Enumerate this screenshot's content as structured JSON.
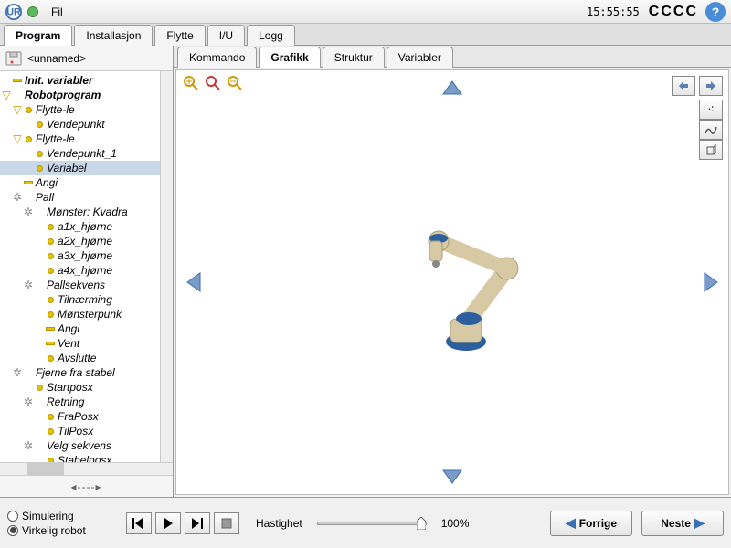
{
  "topbar": {
    "menu_fil": "Fil",
    "clock": "15:55:55",
    "cccc": "CCCC"
  },
  "main_tabs": [
    {
      "label": "Program",
      "active": true
    },
    {
      "label": "Installasjon",
      "active": false
    },
    {
      "label": "Flytte",
      "active": false
    },
    {
      "label": "I/U",
      "active": false
    },
    {
      "label": "Logg",
      "active": false
    }
  ],
  "file_name": "<unnamed>",
  "sub_tabs": [
    {
      "label": "Kommando",
      "active": false
    },
    {
      "label": "Grafikk",
      "active": true
    },
    {
      "label": "Struktur",
      "active": false
    },
    {
      "label": "Variabler",
      "active": false
    }
  ],
  "tree": [
    {
      "indent": 0,
      "twist": "",
      "icon": "bar",
      "label": "Init. variabler",
      "cls": "bold-italic"
    },
    {
      "indent": 0,
      "twist": "▽",
      "icon": "",
      "label": "Robotprogram",
      "cls": "bold-italic"
    },
    {
      "indent": 1,
      "twist": "▽",
      "icon": "dot",
      "label": "Flytte-le",
      "cls": "italic"
    },
    {
      "indent": 2,
      "twist": "",
      "icon": "dot",
      "label": "Vendepunkt",
      "cls": "italic"
    },
    {
      "indent": 1,
      "twist": "▽",
      "icon": "dot",
      "label": "Flytte-le",
      "cls": "italic"
    },
    {
      "indent": 2,
      "twist": "",
      "icon": "dot",
      "label": "Vendepunkt_1",
      "cls": "italic"
    },
    {
      "indent": 2,
      "twist": "",
      "icon": "dot",
      "label": "Variabel",
      "cls": "italic",
      "selected": true
    },
    {
      "indent": 1,
      "twist": "",
      "icon": "bar",
      "label": "Angi",
      "cls": "italic"
    },
    {
      "indent": 1,
      "twist": "⚙",
      "icon": "gear",
      "label": "Pall",
      "cls": "italic"
    },
    {
      "indent": 2,
      "twist": "⚙",
      "icon": "gear",
      "label": "Mønster: Kvadra",
      "cls": "italic"
    },
    {
      "indent": 3,
      "twist": "",
      "icon": "dot",
      "label": "a1x_hjørne",
      "cls": "italic"
    },
    {
      "indent": 3,
      "twist": "",
      "icon": "dot",
      "label": "a2x_hjørne",
      "cls": "italic"
    },
    {
      "indent": 3,
      "twist": "",
      "icon": "dot",
      "label": "a3x_hjørne",
      "cls": "italic"
    },
    {
      "indent": 3,
      "twist": "",
      "icon": "dot",
      "label": "a4x_hjørne",
      "cls": "italic"
    },
    {
      "indent": 2,
      "twist": "⚙",
      "icon": "gear",
      "label": "Pallsekvens",
      "cls": "italic"
    },
    {
      "indent": 3,
      "twist": "",
      "icon": "dot",
      "label": "Tilnærming",
      "cls": "italic"
    },
    {
      "indent": 3,
      "twist": "",
      "icon": "dot",
      "label": "Mønsterpunk",
      "cls": "italic"
    },
    {
      "indent": 3,
      "twist": "",
      "icon": "bar",
      "label": "Angi",
      "cls": "italic"
    },
    {
      "indent": 3,
      "twist": "",
      "icon": "bar",
      "label": "Vent",
      "cls": "italic"
    },
    {
      "indent": 3,
      "twist": "",
      "icon": "dot",
      "label": "Avslutte",
      "cls": "italic"
    },
    {
      "indent": 1,
      "twist": "⚙",
      "icon": "gear",
      "label": "Fjerne fra stabel",
      "cls": "italic"
    },
    {
      "indent": 2,
      "twist": "",
      "icon": "dot",
      "label": "Startposx",
      "cls": "italic"
    },
    {
      "indent": 2,
      "twist": "⚙",
      "icon": "gear",
      "label": "Retning",
      "cls": "italic"
    },
    {
      "indent": 3,
      "twist": "",
      "icon": "dot",
      "label": "FraPosx",
      "cls": "italic"
    },
    {
      "indent": 3,
      "twist": "",
      "icon": "dot",
      "label": "TilPosx",
      "cls": "italic"
    },
    {
      "indent": 2,
      "twist": "⚙",
      "icon": "gear",
      "label": "Velg sekvens",
      "cls": "italic"
    },
    {
      "indent": 3,
      "twist": "",
      "icon": "dot",
      "label": "Stabelposx",
      "cls": "italic"
    }
  ],
  "arrows_row": "◂----▸",
  "sim": {
    "simulering": "Simulering",
    "virkelig": "Virkelig robot",
    "selected": "virkelig"
  },
  "speed": {
    "label": "Hastighet",
    "value": "100%"
  },
  "nav": {
    "prev": "Forrige",
    "next": "Neste"
  },
  "colors": {
    "accent": "#3a6fb0",
    "robot_body": "#d6c9a3",
    "robot_joint": "#2b5f9e"
  }
}
